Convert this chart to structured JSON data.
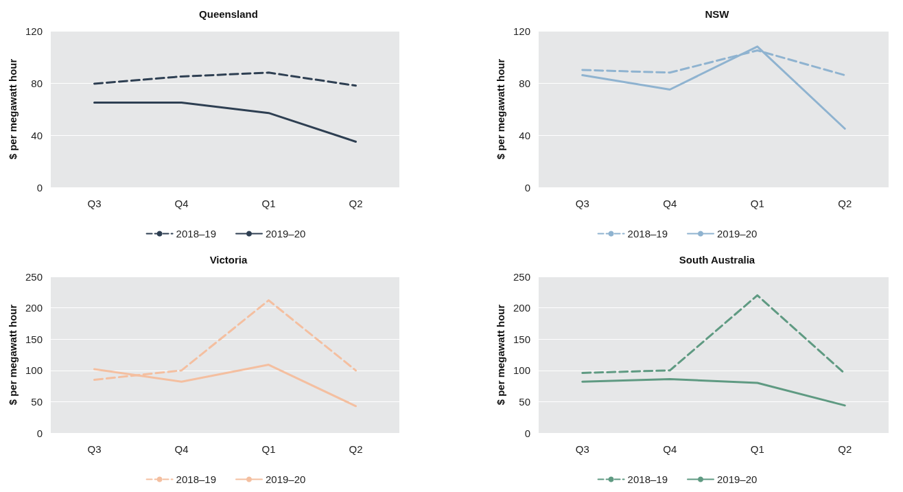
{
  "chart_data": [
    {
      "type": "line",
      "title": "Queensland",
      "ylabel": "$ per megawatt hour",
      "categories": [
        "Q3",
        "Q4",
        "Q1",
        "Q2"
      ],
      "ylim": [
        0,
        120
      ],
      "yticks": [
        0,
        40,
        80,
        120
      ],
      "grid": "y",
      "legend": "bottom",
      "marker": "none",
      "series": [
        {
          "name": "2018–19",
          "color": "#2e3f52",
          "line_style": "dashed",
          "values": [
            79.5,
            85,
            88,
            78
          ]
        },
        {
          "name": "2019–20",
          "color": "#2e3f52",
          "line_style": "solid",
          "values": [
            65,
            65,
            57,
            35
          ]
        }
      ]
    },
    {
      "type": "line",
      "title": "NSW",
      "ylabel": "$ per megawatt hour",
      "categories": [
        "Q3",
        "Q4",
        "Q1",
        "Q2"
      ],
      "ylim": [
        0,
        120
      ],
      "yticks": [
        0,
        40,
        80,
        120
      ],
      "grid": "y",
      "legend": "bottom",
      "marker": "none",
      "series": [
        {
          "name": "2018–19",
          "color": "#8fb3d0",
          "line_style": "dashed",
          "values": [
            90,
            88,
            105,
            86
          ]
        },
        {
          "name": "2019–20",
          "color": "#8fb3d0",
          "line_style": "solid",
          "values": [
            86,
            75,
            108,
            45
          ]
        }
      ]
    },
    {
      "type": "line",
      "title": "Victoria",
      "ylabel": "$ per megawatt hour",
      "categories": [
        "Q3",
        "Q4",
        "Q1",
        "Q2"
      ],
      "ylim": [
        0,
        250
      ],
      "yticks": [
        0,
        50,
        100,
        150,
        200,
        250
      ],
      "grid": "y",
      "legend": "bottom",
      "marker": "none",
      "series": [
        {
          "name": "2018–19",
          "color": "#f4bfa0",
          "line_style": "dashed",
          "values": [
            85,
            100,
            212,
            100
          ]
        },
        {
          "name": "2019–20",
          "color": "#f4bfa0",
          "line_style": "solid",
          "values": [
            102,
            82,
            109,
            43
          ]
        }
      ]
    },
    {
      "type": "line",
      "title": "South Australia",
      "ylabel": "$ per megawatt hour",
      "categories": [
        "Q3",
        "Q4",
        "Q1",
        "Q2"
      ],
      "ylim": [
        0,
        250
      ],
      "yticks": [
        0,
        50,
        100,
        150,
        200,
        250
      ],
      "grid": "y",
      "legend": "bottom",
      "marker": "none",
      "series": [
        {
          "name": "2018–19",
          "color": "#5f9a82",
          "line_style": "dashed",
          "values": [
            96,
            100,
            220,
            95
          ]
        },
        {
          "name": "2019–20",
          "color": "#5f9a82",
          "line_style": "solid",
          "values": [
            82,
            86,
            80,
            44
          ]
        }
      ]
    }
  ]
}
